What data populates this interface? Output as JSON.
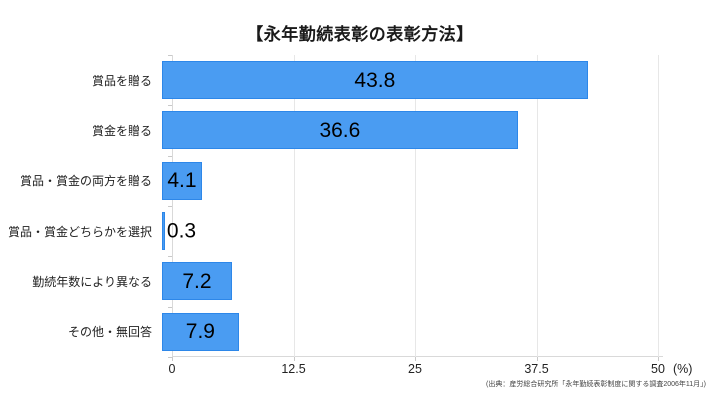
{
  "chart_data": {
    "type": "bar",
    "orientation": "horizontal",
    "title": "【永年勤続表彰の表彰方法】",
    "categories": [
      "賞品を贈る",
      "賞金を贈る",
      "賞品・賞金の両方を贈る",
      "賞品・賞金どちらかを選択",
      "勤続年数により異なる",
      "その他・無回答"
    ],
    "values": [
      43.8,
      36.6,
      4.1,
      0.3,
      7.2,
      7.9
    ],
    "xlim": [
      0,
      50
    ],
    "x_ticks": [
      0,
      12.5,
      25,
      37.5,
      50
    ],
    "x_tick_labels": [
      "0",
      "12.5",
      "25",
      "37.5",
      "50"
    ],
    "unit_label": "(%)",
    "grid": true,
    "legend": "none",
    "bar_color": "#4a9cf2",
    "bar_border_color": "#2d87e9",
    "value_label_color": "#000000"
  },
  "source_note": "(出典：産労総合研究所「永年勤続表彰制度に関する調査2006年11月」)"
}
